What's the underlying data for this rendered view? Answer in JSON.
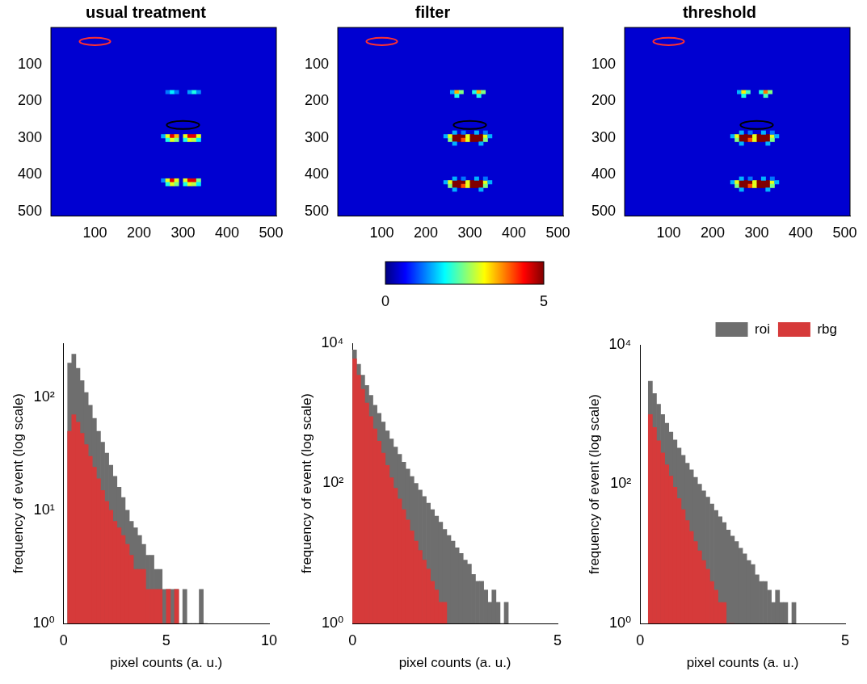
{
  "chart_data": [
    {
      "type": "heatmap",
      "title": "usual treatment",
      "xlim": [
        0,
        512
      ],
      "ylim": [
        0,
        512
      ],
      "xticks": [
        100,
        200,
        300,
        400,
        500
      ],
      "yticks": [
        100,
        200,
        300,
        400,
        500
      ],
      "grid": false,
      "cell_width": 10,
      "background": 0.4,
      "color_range": [
        0,
        5
      ],
      "cells": [
        [
          260,
          170,
          1.2
        ],
        [
          270,
          170,
          1.8
        ],
        [
          280,
          170,
          1.2
        ],
        [
          310,
          170,
          1.4
        ],
        [
          320,
          170,
          2
        ],
        [
          330,
          170,
          1.3
        ],
        [
          250,
          290,
          1.5
        ],
        [
          260,
          290,
          3
        ],
        [
          270,
          290,
          4.5
        ],
        [
          280,
          290,
          3.5
        ],
        [
          300,
          290,
          3
        ],
        [
          310,
          290,
          4.5
        ],
        [
          320,
          290,
          4.5
        ],
        [
          330,
          290,
          3
        ],
        [
          260,
          300,
          2
        ],
        [
          270,
          300,
          3
        ],
        [
          280,
          300,
          2.5
        ],
        [
          300,
          300,
          2
        ],
        [
          310,
          300,
          3
        ],
        [
          320,
          300,
          2.8
        ],
        [
          330,
          300,
          1.8
        ],
        [
          250,
          410,
          1.3
        ],
        [
          260,
          410,
          3
        ],
        [
          270,
          410,
          4.5
        ],
        [
          280,
          410,
          3
        ],
        [
          300,
          410,
          3
        ],
        [
          310,
          410,
          4.5
        ],
        [
          320,
          410,
          4.5
        ],
        [
          330,
          410,
          2.5
        ],
        [
          260,
          420,
          2
        ],
        [
          270,
          420,
          3
        ],
        [
          280,
          420,
          2.5
        ],
        [
          300,
          420,
          2
        ],
        [
          310,
          420,
          3
        ],
        [
          320,
          420,
          2.8
        ],
        [
          330,
          420,
          1.8
        ]
      ],
      "regions": [
        {
          "x": 100,
          "y": 38,
          "rx": 35,
          "ry": 10,
          "color": "#ff3030"
        },
        {
          "x": 300,
          "y": 265,
          "rx": 37,
          "ry": 11,
          "color": "#000000"
        }
      ]
    },
    {
      "type": "heatmap",
      "title": "filter",
      "xlim": [
        0,
        512
      ],
      "ylim": [
        0,
        512
      ],
      "xticks": [
        100,
        200,
        300,
        400,
        500
      ],
      "yticks": [
        100,
        200,
        300,
        400,
        500
      ],
      "grid": false,
      "cell_width": 10,
      "background": 0.4,
      "color_range": [
        0,
        5
      ],
      "cells": [
        [
          255,
          170,
          1.5
        ],
        [
          265,
          170,
          3.5
        ],
        [
          275,
          170,
          2.5
        ],
        [
          305,
          170,
          2
        ],
        [
          315,
          170,
          3.5
        ],
        [
          325,
          170,
          2.5
        ],
        [
          265,
          180,
          2
        ],
        [
          315,
          180,
          2
        ],
        [
          240,
          290,
          1.5
        ],
        [
          250,
          290,
          3
        ],
        [
          260,
          290,
          5
        ],
        [
          270,
          290,
          5
        ],
        [
          280,
          290,
          5
        ],
        [
          290,
          290,
          3
        ],
        [
          300,
          290,
          5
        ],
        [
          310,
          290,
          5
        ],
        [
          320,
          290,
          5
        ],
        [
          330,
          290,
          3
        ],
        [
          340,
          290,
          1.5
        ],
        [
          250,
          300,
          2.5
        ],
        [
          260,
          300,
          5
        ],
        [
          270,
          300,
          5
        ],
        [
          280,
          300,
          4
        ],
        [
          290,
          300,
          3
        ],
        [
          300,
          300,
          5
        ],
        [
          310,
          300,
          5
        ],
        [
          320,
          300,
          5
        ],
        [
          330,
          300,
          2.5
        ],
        [
          260,
          280,
          1.5
        ],
        [
          280,
          280,
          1.2
        ],
        [
          310,
          280,
          1.5
        ],
        [
          330,
          280,
          1.2
        ],
        [
          260,
          310,
          1.5
        ],
        [
          320,
          310,
          1.5
        ],
        [
          240,
          415,
          1.5
        ],
        [
          250,
          415,
          3
        ],
        [
          260,
          415,
          5
        ],
        [
          270,
          415,
          5
        ],
        [
          280,
          415,
          5
        ],
        [
          290,
          415,
          3
        ],
        [
          300,
          415,
          5
        ],
        [
          310,
          415,
          5
        ],
        [
          320,
          415,
          5
        ],
        [
          330,
          415,
          3
        ],
        [
          340,
          415,
          1.5
        ],
        [
          250,
          425,
          2.5
        ],
        [
          260,
          425,
          5
        ],
        [
          270,
          425,
          5
        ],
        [
          280,
          425,
          4
        ],
        [
          290,
          425,
          3
        ],
        [
          300,
          425,
          5
        ],
        [
          310,
          425,
          5
        ],
        [
          320,
          425,
          5
        ],
        [
          330,
          425,
          2.5
        ],
        [
          260,
          405,
          1.5
        ],
        [
          280,
          405,
          1.2
        ],
        [
          310,
          405,
          1.5
        ],
        [
          330,
          405,
          1.2
        ],
        [
          260,
          435,
          1.5
        ],
        [
          320,
          435,
          1.5
        ]
      ],
      "regions": [
        {
          "x": 100,
          "y": 38,
          "rx": 35,
          "ry": 10,
          "color": "#ff3030"
        },
        {
          "x": 300,
          "y": 265,
          "rx": 37,
          "ry": 11,
          "color": "#000000"
        }
      ],
      "colorbar": {
        "range": [
          0,
          5
        ],
        "ticks": [
          0,
          5
        ]
      }
    },
    {
      "type": "heatmap",
      "title": "threshold",
      "xlim": [
        0,
        512
      ],
      "ylim": [
        0,
        512
      ],
      "xticks": [
        100,
        200,
        300,
        400,
        500
      ],
      "yticks": [
        100,
        200,
        300,
        400,
        500
      ],
      "grid": false,
      "cell_width": 10,
      "background": 0.4,
      "color_range": [
        0,
        5
      ],
      "cells": [
        [
          255,
          170,
          1.5
        ],
        [
          265,
          170,
          3.2
        ],
        [
          275,
          170,
          2.2
        ],
        [
          305,
          170,
          2
        ],
        [
          315,
          170,
          3.8
        ],
        [
          325,
          170,
          2.5
        ],
        [
          265,
          180,
          2
        ],
        [
          315,
          180,
          2.2
        ],
        [
          240,
          290,
          1.5
        ],
        [
          250,
          290,
          3
        ],
        [
          260,
          290,
          5
        ],
        [
          270,
          290,
          5
        ],
        [
          280,
          290,
          5
        ],
        [
          290,
          290,
          3
        ],
        [
          300,
          290,
          5
        ],
        [
          310,
          290,
          5
        ],
        [
          320,
          290,
          5
        ],
        [
          330,
          290,
          3
        ],
        [
          340,
          290,
          1.5
        ],
        [
          250,
          300,
          2.5
        ],
        [
          260,
          300,
          5
        ],
        [
          270,
          300,
          5
        ],
        [
          280,
          300,
          4
        ],
        [
          290,
          300,
          3
        ],
        [
          300,
          300,
          5
        ],
        [
          310,
          300,
          5
        ],
        [
          320,
          300,
          5
        ],
        [
          330,
          300,
          2.5
        ],
        [
          260,
          280,
          1.5
        ],
        [
          280,
          280,
          1.2
        ],
        [
          310,
          280,
          1.5
        ],
        [
          330,
          280,
          1.2
        ],
        [
          260,
          310,
          1.5
        ],
        [
          320,
          310,
          1.5
        ],
        [
          240,
          415,
          1.5
        ],
        [
          250,
          415,
          3
        ],
        [
          260,
          415,
          5
        ],
        [
          270,
          415,
          5
        ],
        [
          280,
          415,
          5
        ],
        [
          290,
          415,
          3
        ],
        [
          300,
          415,
          5
        ],
        [
          310,
          415,
          5
        ],
        [
          320,
          415,
          5
        ],
        [
          330,
          415,
          3
        ],
        [
          340,
          415,
          1.5
        ],
        [
          250,
          425,
          2.5
        ],
        [
          260,
          425,
          5
        ],
        [
          270,
          425,
          5
        ],
        [
          280,
          425,
          4
        ],
        [
          290,
          425,
          3
        ],
        [
          300,
          425,
          5
        ],
        [
          310,
          425,
          5
        ],
        [
          320,
          425,
          5
        ],
        [
          330,
          425,
          2.5
        ],
        [
          260,
          405,
          1.5
        ],
        [
          280,
          405,
          1.2
        ],
        [
          310,
          405,
          1.5
        ],
        [
          330,
          405,
          1.2
        ],
        [
          260,
          435,
          1.5
        ],
        [
          320,
          435,
          1.5
        ]
      ],
      "regions": [
        {
          "x": 100,
          "y": 38,
          "rx": 35,
          "ry": 10,
          "color": "#ff3030"
        },
        {
          "x": 300,
          "y": 265,
          "rx": 37,
          "ry": 11,
          "color": "#000000"
        }
      ]
    },
    {
      "type": "histogram",
      "x_label": "pixel counts (a. u.)",
      "y_label": "frequency of event (log scale)",
      "log": "y",
      "grid": false,
      "xlim": [
        0,
        10
      ],
      "xticks": [
        0,
        5,
        10
      ],
      "ylim": [
        1,
        300
      ],
      "yticks": [
        {
          "value": 1,
          "label": "10⁰"
        },
        {
          "value": 10,
          "label": "10¹"
        },
        {
          "value": 100,
          "label": "10²"
        }
      ],
      "bins": [
        0.2,
        0.4,
        0.6,
        0.8,
        1.0,
        1.2,
        1.4,
        1.6,
        1.8,
        2.0,
        2.2,
        2.4,
        2.6,
        2.8,
        3.0,
        3.2,
        3.4,
        3.6,
        3.8,
        4.0,
        4.2,
        4.4,
        4.6,
        4.8,
        5.0,
        5.2,
        5.4,
        5.6,
        5.8,
        6.0,
        6.2,
        6.4,
        6.6,
        6.8,
        7.0
      ],
      "series": [
        {
          "name": "roi",
          "color": "#6e6e6e",
          "values": [
            200,
            240,
            180,
            140,
            110,
            85,
            65,
            50,
            40,
            32,
            25,
            20,
            16,
            13,
            10,
            8,
            7,
            6,
            5,
            4,
            4,
            3,
            3,
            2,
            2,
            2,
            2,
            1,
            2,
            1,
            1,
            1,
            2,
            1
          ]
        },
        {
          "name": "rbg",
          "color": "#d63a3a",
          "values": [
            50,
            70,
            60,
            48,
            38,
            30,
            24,
            19,
            15,
            12,
            10,
            8,
            7,
            6,
            5,
            4,
            3,
            3,
            3,
            2,
            2,
            2,
            2,
            1,
            2,
            1,
            2,
            null,
            null,
            null,
            null,
            null,
            null,
            null
          ]
        }
      ]
    },
    {
      "type": "histogram",
      "x_label": "pixel counts (a. u.)",
      "y_label": "frequency of event (log scale)",
      "log": "y",
      "grid": false,
      "xlim": [
        0,
        5
      ],
      "xticks": [
        0,
        5
      ],
      "ylim": [
        1,
        10000
      ],
      "yticks": [
        {
          "value": 1,
          "label": "10⁰"
        },
        {
          "value": 100,
          "label": "10²"
        },
        {
          "value": 10000,
          "label": "10⁴"
        }
      ],
      "bins": [
        0,
        0.1,
        0.2,
        0.3,
        0.4,
        0.5,
        0.6,
        0.7,
        0.8,
        0.9,
        1.0,
        1.1,
        1.2,
        1.3,
        1.4,
        1.5,
        1.6,
        1.7,
        1.8,
        1.9,
        2.0,
        2.1,
        2.2,
        2.3,
        2.4,
        2.5,
        2.6,
        2.7,
        2.8,
        2.9,
        3.0,
        3.1,
        3.2,
        3.3,
        3.4,
        3.5,
        3.6,
        3.7,
        3.8
      ],
      "series": [
        {
          "name": "roi",
          "color": "#6e6e6e",
          "values": [
            8000,
            5000,
            3500,
            2500,
            1800,
            1300,
            1000,
            750,
            560,
            430,
            330,
            260,
            200,
            160,
            125,
            100,
            80,
            65,
            52,
            42,
            34,
            28,
            22,
            18,
            15,
            12,
            10,
            8,
            7,
            5,
            4,
            4,
            3,
            2,
            3,
            2,
            1,
            2
          ]
        },
        {
          "name": "rbg",
          "color": "#d63a3a",
          "values": [
            6000,
            3500,
            2200,
            1400,
            900,
            600,
            400,
            270,
            180,
            120,
            85,
            60,
            42,
            30,
            21,
            15,
            11,
            8,
            6,
            4,
            3,
            2,
            2,
            null,
            null,
            null,
            null,
            null,
            null,
            null,
            null,
            null,
            null,
            null,
            null,
            null,
            null,
            null
          ]
        }
      ]
    },
    {
      "type": "histogram",
      "x_label": "pixel counts (a. u.)",
      "y_label": "frequency of event (log scale)",
      "log": "y",
      "grid": false,
      "xlim": [
        0,
        5
      ],
      "xticks": [
        0,
        5
      ],
      "ylim": [
        1,
        10000
      ],
      "legend": "top-right",
      "yticks": [
        {
          "value": 1,
          "label": "10⁰"
        },
        {
          "value": 100,
          "label": "10²"
        },
        {
          "value": 10000,
          "label": "10⁴"
        }
      ],
      "bins": [
        0.2,
        0.3,
        0.4,
        0.5,
        0.6,
        0.7,
        0.8,
        0.9,
        1.0,
        1.1,
        1.2,
        1.3,
        1.4,
        1.5,
        1.6,
        1.7,
        1.8,
        1.9,
        2.0,
        2.1,
        2.2,
        2.3,
        2.4,
        2.5,
        2.6,
        2.7,
        2.8,
        2.9,
        3.0,
        3.1,
        3.2,
        3.3,
        3.4,
        3.5,
        3.6,
        3.7,
        3.8
      ],
      "series": [
        {
          "name": "roi",
          "color": "#6e6e6e",
          "values": [
            3000,
            2000,
            1400,
            1000,
            750,
            560,
            430,
            330,
            260,
            200,
            160,
            125,
            100,
            80,
            65,
            52,
            42,
            34,
            28,
            22,
            18,
            15,
            12,
            10,
            8,
            7,
            5,
            4,
            4,
            3,
            2,
            3,
            2,
            2,
            1,
            2
          ]
        },
        {
          "name": "rbg",
          "color": "#d63a3a",
          "values": [
            1000,
            650,
            420,
            280,
            190,
            130,
            90,
            62,
            43,
            30,
            21,
            15,
            11,
            8,
            6,
            4,
            3,
            2,
            2,
            1,
            1,
            null,
            null,
            null,
            null,
            null,
            null,
            null,
            null,
            null,
            null,
            null,
            null,
            null,
            null,
            null
          ]
        }
      ]
    }
  ]
}
